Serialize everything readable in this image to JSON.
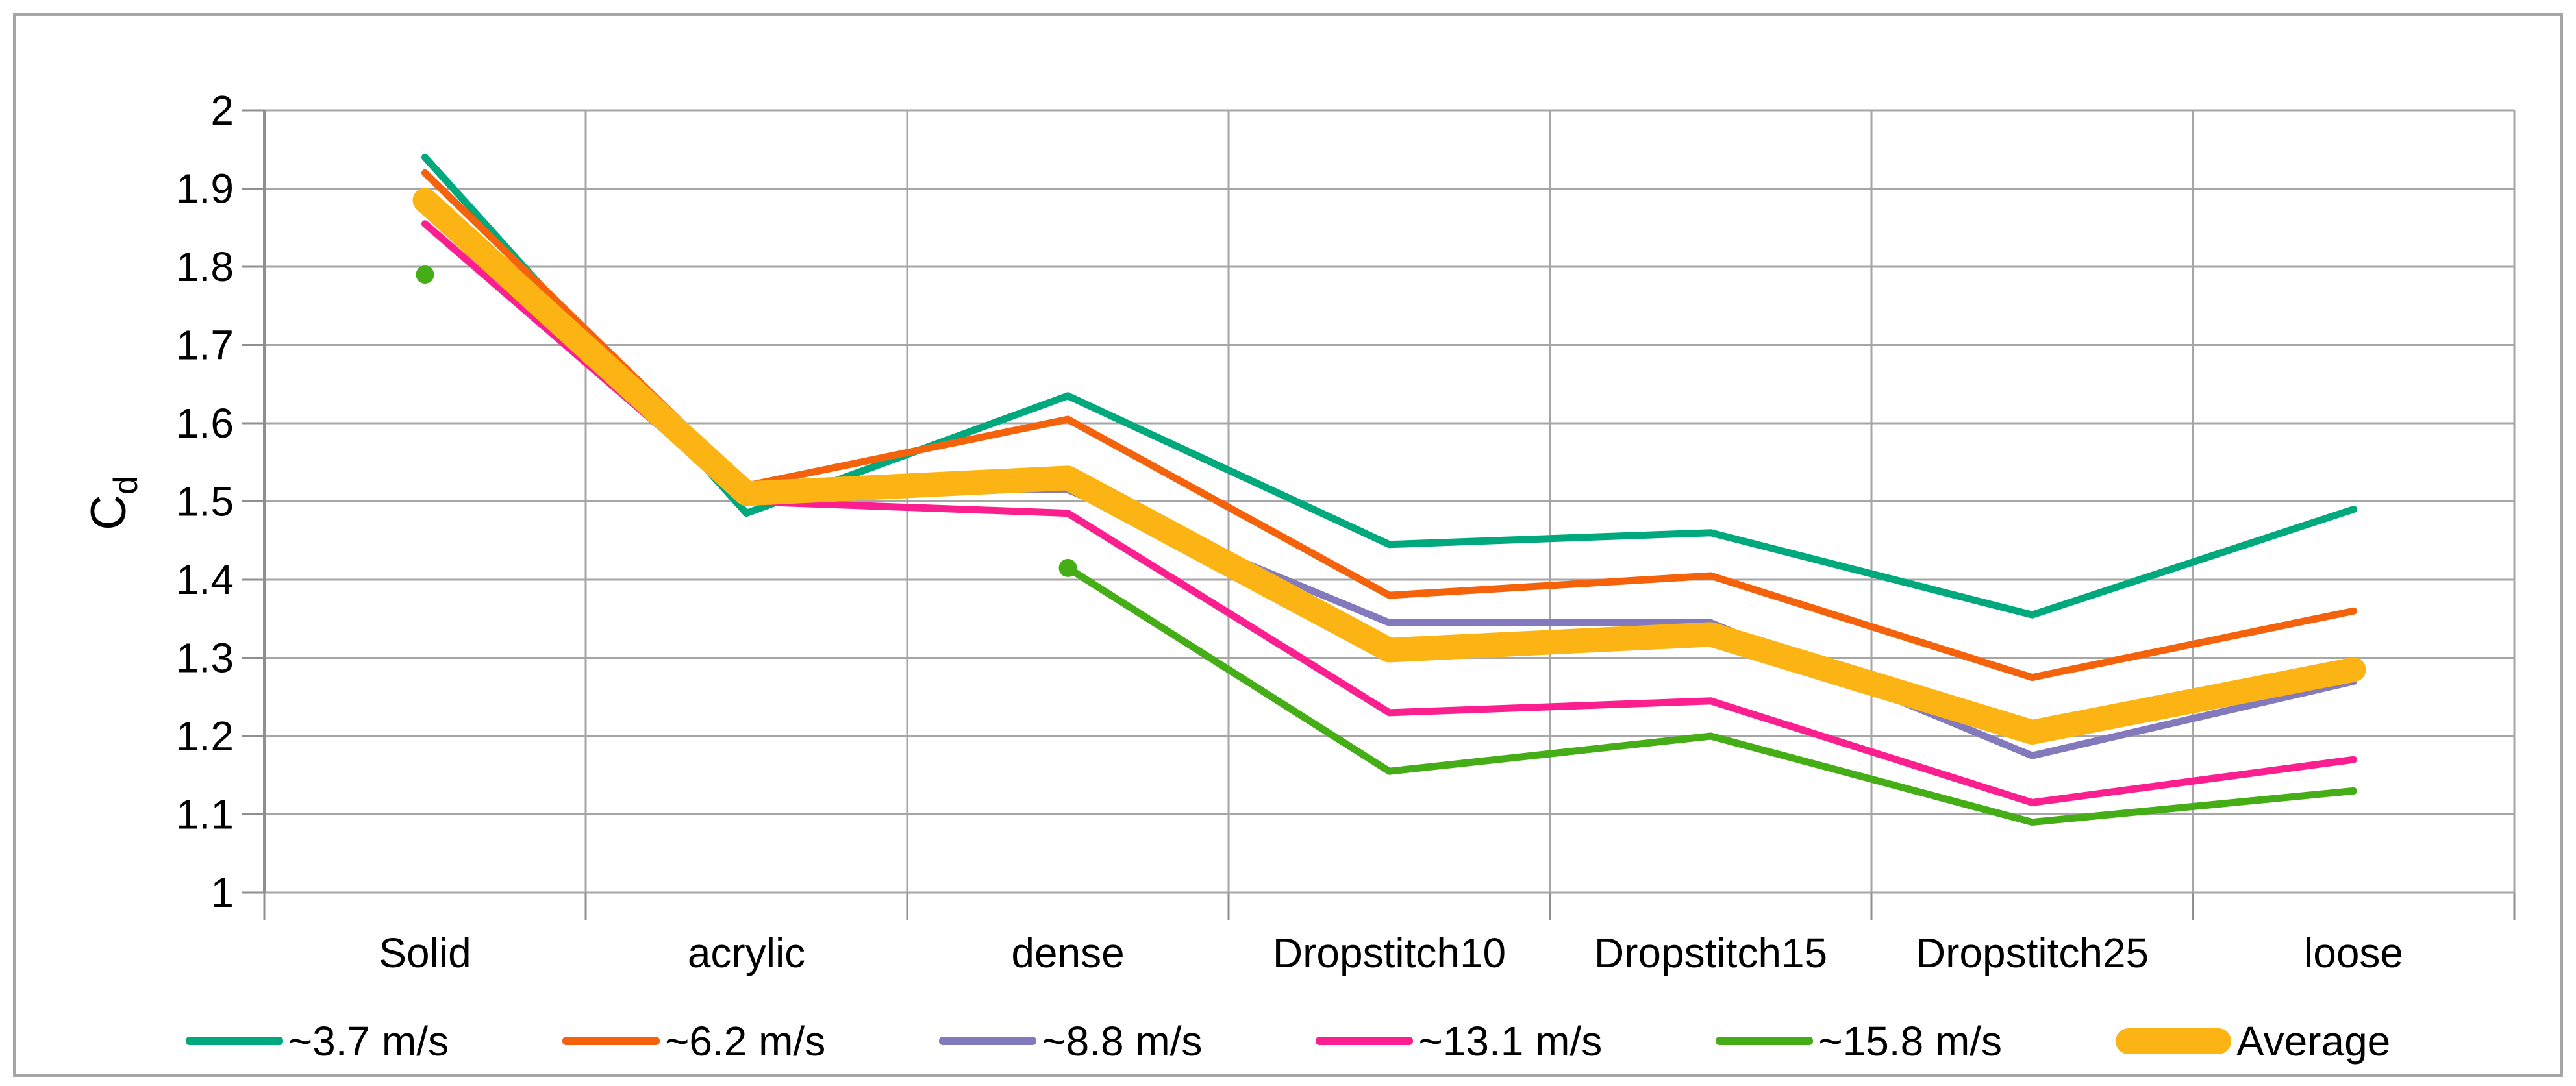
{
  "chart_data": {
    "type": "line",
    "title": "",
    "ylabel_main": "C",
    "ylabel_sub": "d",
    "xlabel": "",
    "categories": [
      "Solid",
      "acrylic",
      "dense",
      "Dropstitch10",
      "Dropstitch15",
      "Dropstitch25",
      "loose"
    ],
    "series": [
      {
        "name": "~3.7 m/s",
        "color": "#00a87e",
        "thickness": "thin",
        "values": [
          1.94,
          1.485,
          1.635,
          1.445,
          1.46,
          1.355,
          1.49
        ]
      },
      {
        "name": "~6.2 m/s",
        "color": "#f4620c",
        "thickness": "thin",
        "values": [
          1.92,
          1.52,
          1.605,
          1.38,
          1.405,
          1.275,
          1.36
        ]
      },
      {
        "name": "~8.8 m/s",
        "color": "#8379bd",
        "thickness": "thin",
        "values": [
          1.88,
          1.515,
          1.515,
          1.345,
          1.345,
          1.175,
          1.27
        ]
      },
      {
        "name": "~13.1 m/s",
        "color": "#fb1f8f",
        "thickness": "thin",
        "values": [
          1.855,
          1.5,
          1.485,
          1.23,
          1.245,
          1.115,
          1.17
        ]
      },
      {
        "name": "~15.8 m/s",
        "color": "#45ad15",
        "thickness": "thin",
        "values": [
          1.79,
          null,
          1.415,
          1.155,
          1.2,
          1.09,
          1.13
        ],
        "marker_indices": [
          0,
          2
        ]
      },
      {
        "name": "Average",
        "color": "#fcb414",
        "thickness": "thick",
        "values": [
          1.885,
          1.51,
          1.53,
          1.31,
          1.33,
          1.205,
          1.285
        ]
      }
    ],
    "ylim": [
      1,
      2
    ],
    "ytick_step": 0.1,
    "ytick_labels": [
      "2",
      "1.9",
      "1.8",
      "1.7",
      "1.6",
      "1.5",
      "1.4",
      "1.3",
      "1.2",
      "1.1",
      "1"
    ],
    "grid": true,
    "legend_position": "bottom"
  },
  "style": {
    "gridline_color": "#a6a6a6",
    "axis_color": "#8f8f8f",
    "border_color": "#a6a6a6",
    "background": "#ffffff",
    "text_color": "#000000"
  }
}
